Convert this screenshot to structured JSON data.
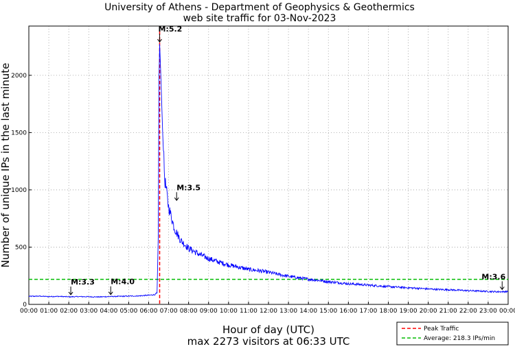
{
  "chart_data": {
    "type": "line",
    "title": "University of Athens - Department of Geophysics & Geothermics",
    "subtitle": "web site traffic for 03-Nov-2023",
    "xlabel": "Hour of day (UTC)",
    "footer": "max 2273 visitors at 06:33 UTC",
    "ylabel": "Number of unique IPs in the last minute",
    "xlim": [
      0,
      24
    ],
    "ylim": [
      0,
      2430
    ],
    "x_ticks": [
      "00:00",
      "01:00",
      "02:00",
      "03:00",
      "04:00",
      "05:00",
      "06:00",
      "07:00",
      "08:00",
      "09:00",
      "10:00",
      "11:00",
      "12:00",
      "13:00",
      "14:00",
      "15:00",
      "16:00",
      "17:00",
      "18:00",
      "19:00",
      "20:00",
      "21:00",
      "22:00",
      "23:00",
      "00:00"
    ],
    "y_ticks": [
      0,
      500,
      1000,
      1500,
      2000
    ],
    "grid": true,
    "legend_position": "bottom-right",
    "series": [
      {
        "name": "traffic",
        "color": "#0000ff",
        "points": [
          [
            0,
            70
          ],
          [
            0.5,
            72
          ],
          [
            1,
            68
          ],
          [
            1.5,
            70
          ],
          [
            2,
            66
          ],
          [
            2.5,
            68
          ],
          [
            3,
            67
          ],
          [
            3.5,
            65
          ],
          [
            4,
            68
          ],
          [
            4.5,
            70
          ],
          [
            5,
            72
          ],
          [
            5.5,
            74
          ],
          [
            6,
            80
          ],
          [
            6.3,
            85
          ],
          [
            6.42,
            100
          ],
          [
            6.48,
            600
          ],
          [
            6.52,
            2000
          ],
          [
            6.55,
            2273
          ],
          [
            6.6,
            2050
          ],
          [
            6.7,
            1500
          ],
          [
            6.8,
            1100
          ],
          [
            7,
            850
          ],
          [
            7.3,
            660
          ],
          [
            7.6,
            560
          ],
          [
            8,
            490
          ],
          [
            8.5,
            440
          ],
          [
            9,
            400
          ],
          [
            9.5,
            370
          ],
          [
            10,
            345
          ],
          [
            10.5,
            325
          ],
          [
            11,
            305
          ],
          [
            11.5,
            295
          ],
          [
            12,
            280
          ],
          [
            12.5,
            262
          ],
          [
            13,
            245
          ],
          [
            13.5,
            232
          ],
          [
            14,
            220
          ],
          [
            14.5,
            210
          ],
          [
            15,
            198
          ],
          [
            15.5,
            190
          ],
          [
            16,
            180
          ],
          [
            16.5,
            175
          ],
          [
            17,
            168
          ],
          [
            17.5,
            162
          ],
          [
            18,
            155
          ],
          [
            18.5,
            150
          ],
          [
            19,
            145
          ],
          [
            19.5,
            140
          ],
          [
            20,
            135
          ],
          [
            20.5,
            130
          ],
          [
            21,
            128
          ],
          [
            21.5,
            124
          ],
          [
            22,
            120
          ],
          [
            22.5,
            117
          ],
          [
            23,
            113
          ],
          [
            23.5,
            110
          ],
          [
            24,
            112
          ]
        ]
      }
    ],
    "reference_lines": [
      {
        "name": "Peak Traffic",
        "orientation": "vertical",
        "x": 6.55,
        "color": "#ff0000",
        "style": "dashed"
      },
      {
        "name": "Average: 218.3 IPs/min",
        "orientation": "horizontal",
        "y": 218.3,
        "color": "#00bb00",
        "style": "dashed"
      }
    ],
    "annotations": [
      {
        "text": "M:3.3",
        "x": 2.1,
        "y": 66
      },
      {
        "text": "M:4.0",
        "x": 4.1,
        "y": 68
      },
      {
        "text": "M:5.2",
        "x": 6.55,
        "y": 2273
      },
      {
        "text": "M:3.5",
        "x": 7.4,
        "y": 890
      },
      {
        "text": "M:3.6",
        "x": 23.7,
        "y": 112
      }
    ]
  }
}
